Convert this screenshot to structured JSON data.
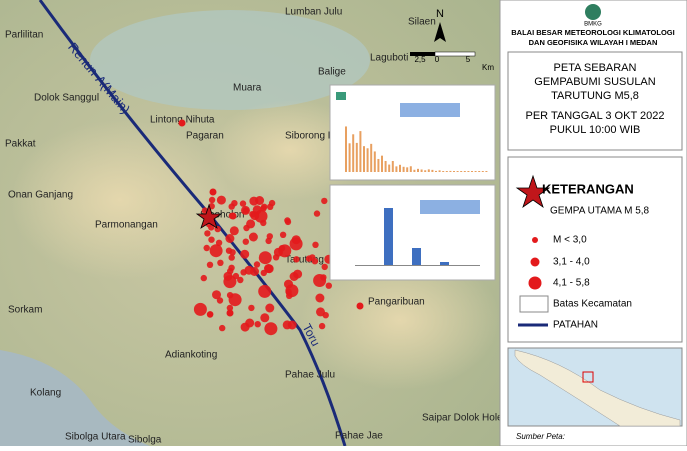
{
  "map": {
    "places": [
      "Parlilitan",
      "Lumban Julu",
      "Silaen",
      "Laguboti",
      "Balige",
      "Muara",
      "Dolok Sanggul",
      "Lintong Nihuta",
      "Pakkat",
      "Pagaran",
      "Siborong Boron",
      "Onan Ganjang",
      "Parmonangan",
      "Sipoholon",
      "Tarutung",
      "Sorkam",
      "Pangaribuan",
      "Adiankoting",
      "Pahae Julu",
      "Kolang",
      "Sibolga Utara",
      "Sibolga",
      "Saipar Dolok Hole",
      "Pahae Jae"
    ],
    "fault_labels": [
      "Renun-A(Main)",
      "Toru"
    ],
    "north": "N",
    "scale": [
      "2,5",
      "0",
      "5",
      "Km"
    ]
  },
  "panel": {
    "logo": "BMKG",
    "agency": [
      "BALAI BESAR METEOROLOGI KLIMATOLOGI",
      "DAN GEOFISIKA WILAYAH I MEDAN"
    ],
    "title": [
      "PETA SEBARAN",
      "GEMPABUMI SUSULAN",
      "TARUTUNG M5,8"
    ],
    "date": [
      "PER TANGGAL 3 OKT 2022",
      "PUKUL 10:00 WIB"
    ],
    "legend_title": "KETERANGAN",
    "legend": [
      "GEMPA UTAMA M 5,8",
      "M < 3,0",
      "3,1 - 4,0",
      "4,1 - 5,8",
      "Batas Kecamatan",
      "PATAHAN"
    ],
    "source": "Sumber Peta:"
  }
}
